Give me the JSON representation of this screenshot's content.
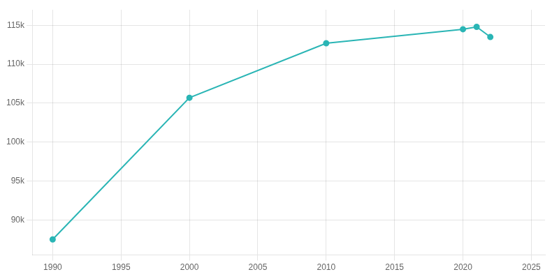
{
  "chart_data": {
    "type": "line",
    "x": [
      1990,
      2000,
      2010,
      2020,
      2021,
      2022
    ],
    "series": [
      {
        "color": "#2ab5b5",
        "marker": "circle",
        "values": [
          87500,
          105700,
          112700,
          114500,
          114800,
          113500
        ]
      }
    ],
    "xlim": [
      1988.5,
      2026
    ],
    "ylim": [
      85500,
      117000
    ],
    "xticks": [
      1990,
      1995,
      2000,
      2005,
      2010,
      2015,
      2020,
      2025
    ],
    "yticks": [
      {
        "value": 90000,
        "label": "90k"
      },
      {
        "value": 95000,
        "label": "95k"
      },
      {
        "value": 100000,
        "label": "100k"
      },
      {
        "value": 105000,
        "label": "105k"
      },
      {
        "value": 110000,
        "label": "110k"
      },
      {
        "value": 115000,
        "label": "115k"
      }
    ],
    "grid": true
  }
}
